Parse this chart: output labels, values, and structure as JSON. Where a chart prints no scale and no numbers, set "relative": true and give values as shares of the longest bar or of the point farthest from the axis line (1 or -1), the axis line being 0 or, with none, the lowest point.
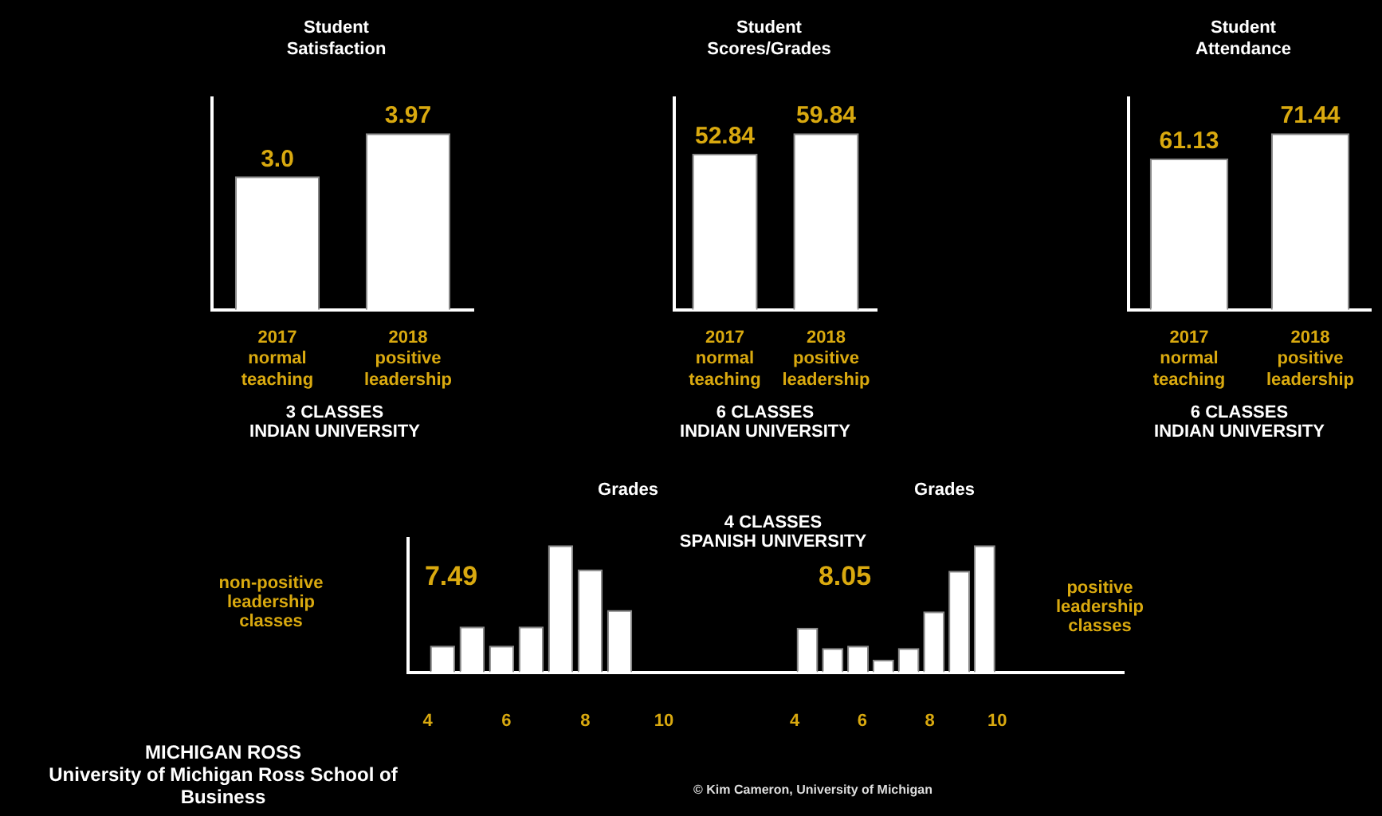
{
  "chart_data": [
    {
      "type": "bar",
      "title": "Student\nSatisfaction",
      "categories": [
        "2017 normal teaching",
        "2018 positive leadership"
      ],
      "values": [
        3.0,
        3.97
      ],
      "value_labels": [
        "3.0",
        "3.97"
      ],
      "color": "#ffffff",
      "annotations": [
        "3 CLASSES\nINDIAN UNIVERSITY"
      ]
    },
    {
      "type": "bar",
      "title": "Student\nScores/Grades",
      "categories": [
        "2017 normal teaching",
        "2018 positive leadership"
      ],
      "values": [
        52.84,
        59.84
      ],
      "color": "#ffffff",
      "data_labels": true,
      "annotations": [
        "6 CLASSES\nINDIAN UNIVERSITY"
      ]
    },
    {
      "type": "bar",
      "title": "Student\nAttendance",
      "categories": [
        "2017 normal teaching",
        "2018 positive leadership"
      ],
      "values": [
        61.13,
        71.44
      ],
      "color": "#ffffff",
      "data_labels": true,
      "annotations": [
        "6 CLASSES\nINDIAN UNIVERSITY"
      ]
    },
    {
      "type": "bar",
      "title": "Grades",
      "relative": true,
      "x": [
        4.375,
        5.125,
        5.875,
        6.625,
        7.375,
        8.125,
        8.875
      ],
      "values": [
        0.21,
        0.36,
        0.21,
        0.36,
        1,
        0.81,
        0.49
      ],
      "color": "#ffffff",
      "xlim": [
        3.5,
        15
      ],
      "xticks": [
        4,
        6,
        8,
        10
      ],
      "annotations": [
        "non-positive\nleadership\nclasses",
        "7.49",
        "4 CLASSES\nSPANISH UNIVERSITY"
      ]
    },
    {
      "type": "bar",
      "title": "Grades",
      "relative": true,
      "x": [
        4.375,
        5.125,
        5.875,
        6.625,
        7.375,
        8.125,
        8.875,
        9.625
      ],
      "values": [
        0.35,
        0.19,
        0.21,
        0.1,
        0.19,
        0.48,
        0.8,
        1
      ],
      "color": "#ffffff",
      "xlim": [
        3.5,
        13.75
      ],
      "xticks": [
        4,
        6,
        8,
        10
      ],
      "annotations": [
        "8.05",
        "positive\nleadership\nclasses",
        "© Kim Cameron, University of Michigan",
        "MICHIGAN ROSS\nUniversity of Michigan Ross School of Business"
      ]
    }
  ]
}
